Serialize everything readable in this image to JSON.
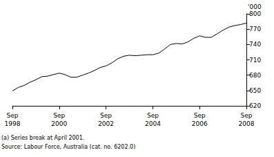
{
  "chart_data": {
    "type": "line",
    "y_label": "'000",
    "color": "#000000",
    "grid": false,
    "categories": [
      "Sep 1998",
      null,
      null,
      null,
      null,
      null,
      null,
      null,
      "Sep 2000",
      null,
      null,
      null,
      null,
      null,
      null,
      null,
      "Sep 2002",
      null,
      null,
      null,
      null,
      null,
      null,
      null,
      "Sep 2004",
      null,
      null,
      null,
      null,
      null,
      null,
      null,
      "Sep 2006",
      null,
      null,
      null,
      null,
      null,
      null,
      null,
      "Sep 2008"
    ],
    "values": [
      649,
      656,
      660,
      666,
      671,
      677,
      678,
      681,
      684,
      681,
      676,
      676,
      680,
      684,
      689,
      695,
      698,
      704,
      712,
      717,
      719,
      718,
      719,
      720,
      720,
      723,
      731,
      740,
      742,
      741,
      745,
      752,
      757,
      754,
      754,
      761,
      768,
      774,
      777,
      779,
      782
    ],
    "ylim": [
      620,
      800
    ],
    "yticks": [
      620,
      650,
      680,
      710,
      740,
      770,
      800
    ],
    "footnotes": [
      "(a) Series break at April 2001.",
      "Source: Labour Force, Australia (cat. no. 6202.0)"
    ]
  }
}
